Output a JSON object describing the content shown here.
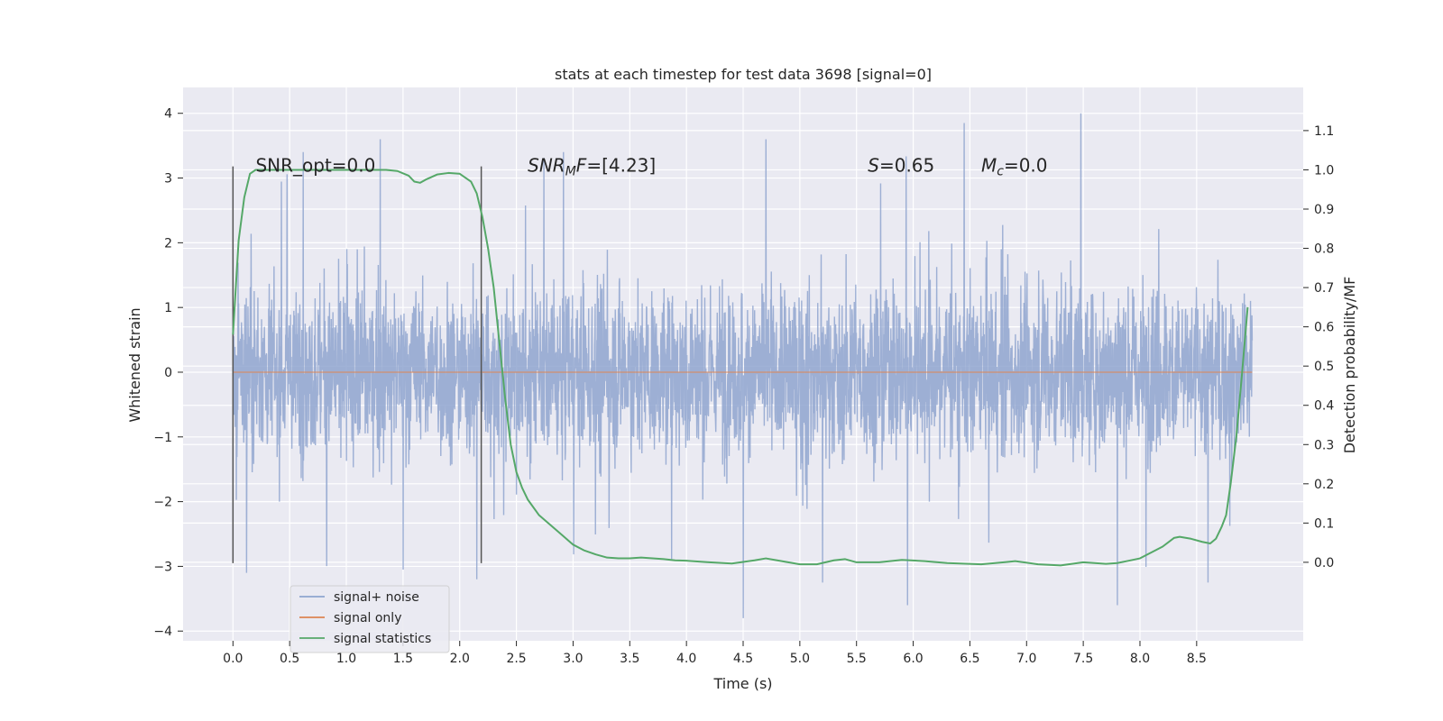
{
  "chart_data": {
    "type": "line",
    "title": "stats at each timestep for test data 3698 [signal=0]",
    "xlabel": "Time (s)",
    "ylabel_left": "Whitened strain",
    "ylabel_right": "Detection probability/MF",
    "xlim": [
      -0.44,
      9.44
    ],
    "ylim_left": [
      -4.15,
      4.4
    ],
    "ylim_right": [
      -0.2,
      1.21
    ],
    "x_ticks": [
      0.0,
      0.5,
      1.0,
      1.5,
      2.0,
      2.5,
      3.0,
      3.5,
      4.0,
      4.5,
      5.0,
      5.5,
      6.0,
      6.5,
      7.0,
      7.5,
      8.0,
      8.5
    ],
    "x_tick_labels": [
      "0.0",
      "0.5",
      "1.0",
      "1.5",
      "2.0",
      "2.5",
      "3.0",
      "3.5",
      "4.0",
      "4.5",
      "5.0",
      "5.5",
      "6.0",
      "6.5",
      "7.0",
      "7.5",
      "8.0",
      "8.5"
    ],
    "y_ticks_left": [
      -4,
      -3,
      -2,
      -1,
      0,
      1,
      2,
      3,
      4
    ],
    "y_tick_labels_left": [
      "−4",
      "−3",
      "−2",
      "−1",
      "0",
      "1",
      "2",
      "3",
      "4"
    ],
    "y_ticks_right": [
      0.0,
      0.1,
      0.2,
      0.3,
      0.4,
      0.5,
      0.6,
      0.7,
      0.8,
      0.9,
      1.0,
      1.1
    ],
    "y_tick_labels_right": [
      "0.0",
      "0.1",
      "0.2",
      "0.3",
      "0.4",
      "0.5",
      "0.6",
      "0.7",
      "0.8",
      "0.9",
      "1.0",
      "1.1"
    ],
    "grid": true,
    "legend_position": "lower-left",
    "colors": {
      "noise": "#8fa5cf",
      "signal_only": "#dd8452",
      "statistics": "#55a868",
      "vline": "#555555",
      "background": "#eaeaf2",
      "grid": "#ffffff"
    },
    "series": [
      {
        "name": "signal+ noise",
        "axis": "left",
        "x_range": [
          0.0,
          8.99
        ],
        "description": "dense noise trace",
        "extrema_samples": [
          {
            "x": 0.12,
            "y": -3.1
          },
          {
            "x": 0.62,
            "y": 3.4
          },
          {
            "x": 1.3,
            "y": 3.6
          },
          {
            "x": 1.5,
            "y": -3.05
          },
          {
            "x": 2.15,
            "y": -3.2
          },
          {
            "x": 4.5,
            "y": -3.8
          },
          {
            "x": 4.7,
            "y": 3.6
          },
          {
            "x": 5.2,
            "y": -3.25
          },
          {
            "x": 5.95,
            "y": -3.6
          },
          {
            "x": 6.45,
            "y": 3.85
          },
          {
            "x": 7.48,
            "y": 4.0
          },
          {
            "x": 7.8,
            "y": -3.6
          },
          {
            "x": 8.6,
            "y": -3.25
          }
        ]
      },
      {
        "name": "signal only",
        "axis": "left",
        "x": [
          0.0,
          8.99
        ],
        "y": [
          0.0,
          0.0
        ]
      },
      {
        "name": "signal statistics",
        "axis": "right",
        "x": [
          0.0,
          0.05,
          0.1,
          0.15,
          0.2,
          0.3,
          0.5,
          0.8,
          1.0,
          1.2,
          1.35,
          1.45,
          1.55,
          1.6,
          1.65,
          1.7,
          1.8,
          1.9,
          2.0,
          2.1,
          2.15,
          2.2,
          2.25,
          2.3,
          2.35,
          2.4,
          2.45,
          2.5,
          2.55,
          2.6,
          2.7,
          2.8,
          2.9,
          3.0,
          3.1,
          3.2,
          3.3,
          3.4,
          3.5,
          3.6,
          3.7,
          3.8,
          3.9,
          4.0,
          4.2,
          4.4,
          4.6,
          4.7,
          4.8,
          5.0,
          5.15,
          5.3,
          5.4,
          5.5,
          5.7,
          5.9,
          6.1,
          6.3,
          6.6,
          6.8,
          6.9,
          7.1,
          7.3,
          7.5,
          7.7,
          7.8,
          7.9,
          8.0,
          8.1,
          8.2,
          8.3,
          8.35,
          8.45,
          8.55,
          8.62,
          8.67,
          8.72,
          8.76,
          8.8,
          8.85,
          8.9,
          8.95
        ],
        "y": [
          0.58,
          0.82,
          0.93,
          0.99,
          1.0,
          1.0,
          1.0,
          1.0,
          1.0,
          1.0,
          1.0,
          0.997,
          0.985,
          0.97,
          0.967,
          0.975,
          0.988,
          0.992,
          0.99,
          0.97,
          0.94,
          0.88,
          0.8,
          0.7,
          0.56,
          0.42,
          0.3,
          0.23,
          0.19,
          0.16,
          0.12,
          0.095,
          0.07,
          0.045,
          0.03,
          0.02,
          0.012,
          0.01,
          0.01,
          0.012,
          0.01,
          0.008,
          0.005,
          0.004,
          0.0,
          -0.003,
          0.005,
          0.01,
          0.005,
          -0.005,
          -0.005,
          0.005,
          0.008,
          0.0,
          0.0,
          0.006,
          0.003,
          -0.002,
          -0.005,
          0.0,
          0.003,
          -0.005,
          -0.008,
          0.0,
          -0.004,
          -0.002,
          0.004,
          0.01,
          0.025,
          0.04,
          0.062,
          0.065,
          0.06,
          0.052,
          0.048,
          0.06,
          0.09,
          0.12,
          0.2,
          0.32,
          0.48,
          0.65
        ]
      }
    ],
    "vlines": [
      {
        "x": 0.0,
        "y_range": [
          -2.95,
          3.18
        ]
      },
      {
        "x": 2.19,
        "y_range": [
          -2.95,
          3.18
        ]
      }
    ],
    "annotations": [
      {
        "id": "snr-opt",
        "html": "SNR_opt=0.0",
        "x": 0.2,
        "y": 3.1
      },
      {
        "id": "snr-mf",
        "x": 2.6,
        "y": 3.1,
        "parts": [
          [
            "i",
            "SNR"
          ],
          [
            "sub-i",
            "M"
          ],
          [
            "i",
            "F"
          ],
          [
            "n",
            "=[4.23]"
          ]
        ]
      },
      {
        "id": "s-stat",
        "x": 5.6,
        "y": 3.1,
        "parts": [
          [
            "i",
            "S"
          ],
          [
            "n",
            "=0.65"
          ]
        ]
      },
      {
        "id": "mc",
        "x": 6.6,
        "y": 3.1,
        "parts": [
          [
            "i",
            "M"
          ],
          [
            "sub-i",
            "c"
          ],
          [
            "n",
            "=0.0"
          ]
        ]
      }
    ]
  }
}
